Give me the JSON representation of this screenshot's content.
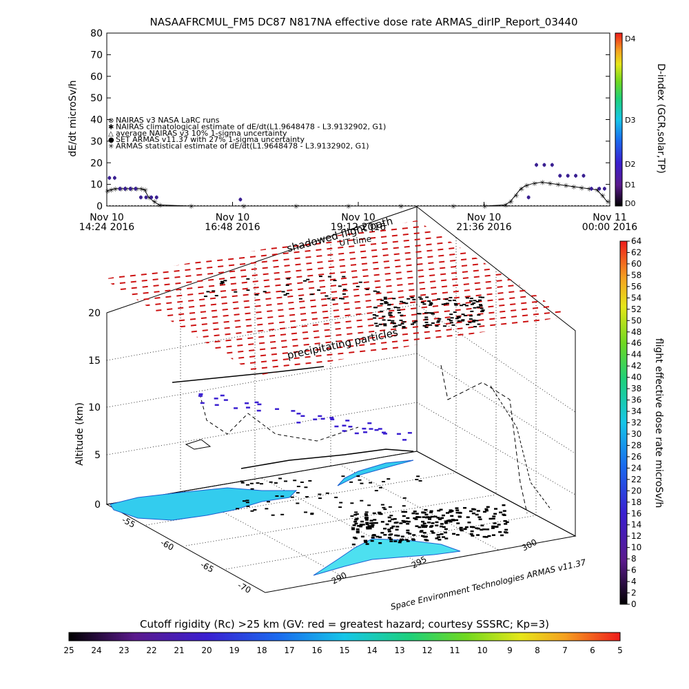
{
  "chart_data": [
    {
      "type": "line",
      "title": "NASAAFRCMUL_FM5 DC87 N817NA effective dose rate ARMAS_dirIP_Report_03440",
      "ylabel": "dE/dt microSv/h",
      "ylim": [
        0,
        80
      ],
      "yticks": [
        "0",
        "10",
        "20",
        "30",
        "40",
        "50",
        "60",
        "70",
        "80"
      ],
      "xticks": [
        {
          "top": "Nov 10",
          "bottom": "14:24 2016"
        },
        {
          "top": "Nov 10",
          "bottom": "16:48 2016"
        },
        {
          "top": "Nov 10",
          "bottom": "19:12 2016"
        },
        {
          "top": "Nov 10",
          "bottom": "21:36 2016"
        },
        {
          "top": "Nov 11",
          "bottom": "00:00 2016"
        }
      ],
      "x_hours_range": [
        14.4,
        24.0
      ],
      "legend": [
        "NAIRAS v3 NASA LaRC runs",
        "NAIRAS climatological estimate of dE/dt(L1.9648478 - L3.9132902, G1)",
        "average NAIRAS v3 10% 1-sigma uncertainty",
        "SET ARMAS v11.37 with 27% 1-sigma uncertainty",
        "ARMAS statistical estimate of dE/dt(L1.9648478 - L3.9132902, G1)"
      ],
      "right_axis": {
        "label": "D-index (GCR,solar,TP)",
        "ticks": [
          "D0",
          "D1",
          "D2",
          "D3",
          "D4"
        ]
      },
      "series": [
        {
          "name": "ARMAS statistical estimate of dE/dt(L1.9648478 - L3.9132902, G1)",
          "x": [
            14.4,
            14.47,
            14.55,
            14.65,
            14.75,
            14.85,
            14.95,
            15.05,
            15.12,
            15.2,
            15.3,
            15.4,
            16.0,
            17.0,
            18.0,
            19.0,
            20.0,
            21.0,
            21.6,
            22.0,
            22.1,
            22.2,
            22.3,
            22.4,
            22.55,
            22.7,
            22.85,
            23.0,
            23.15,
            23.3,
            23.45,
            23.6,
            23.75,
            23.85,
            23.95
          ],
          "y": [
            7,
            7.5,
            8,
            8,
            8,
            8,
            8,
            8,
            7.5,
            4,
            2,
            0.5,
            0,
            0,
            0,
            0,
            0,
            0,
            0,
            0.5,
            2,
            5,
            8,
            9.5,
            10.5,
            11,
            10.5,
            10,
            9.5,
            9,
            8.5,
            8,
            7.5,
            5,
            2
          ]
        },
        {
          "name": "SET ARMAS v11.37 with 27% 1-sigma uncertainty",
          "x": [
            14.45,
            14.55,
            14.65,
            14.75,
            14.85,
            14.95,
            15.05,
            15.15,
            15.25,
            15.35,
            16.95,
            22.45,
            22.6,
            22.75,
            22.9,
            23.05,
            23.2,
            23.35,
            23.5,
            23.65,
            23.8,
            23.9
          ],
          "y": [
            13,
            13,
            8,
            8,
            8,
            8,
            4,
            4,
            4,
            4,
            3,
            4,
            19,
            19,
            19,
            14,
            14,
            14,
            14,
            8,
            8,
            8
          ]
        }
      ]
    },
    {
      "type": "heatmap",
      "title": "",
      "zlabel": "Altitude (km)",
      "zticks": [
        "0",
        "5",
        "10",
        "15",
        "20"
      ],
      "lat_ticks": [
        "-55",
        "-60",
        "-65",
        "-70"
      ],
      "lon_ticks": [
        "290",
        "295",
        "300"
      ],
      "annotations": [
        "shadowed flight path",
        "UT time",
        "precipitating particles"
      ],
      "colorbar_right": {
        "label": "flight effective dose rate microSv/h",
        "range": [
          0,
          64
        ],
        "ticks": [
          "0",
          "2",
          "4",
          "6",
          "8",
          "10",
          "12",
          "14",
          "16",
          "18",
          "20",
          "22",
          "24",
          "26",
          "28",
          "30",
          "32",
          "34",
          "36",
          "38",
          "40",
          "42",
          "44",
          "46",
          "48",
          "50",
          "52",
          "54",
          "56",
          "58",
          "60",
          "62",
          "64"
        ]
      },
      "colorbar_bottom": {
        "label": "Cutoff rigidity (Rc) >25 km (GV: red = greatest hazard; courtesy SSSRC; Kp=3)",
        "ticks": [
          "25",
          "24",
          "23",
          "22",
          "21",
          "20",
          "19",
          "18",
          "17",
          "16",
          "15",
          "14",
          "13",
          "12",
          "11",
          "10",
          "9",
          "8",
          "7",
          "6",
          "5"
        ]
      },
      "credit": "Space Environment Technologies ARMAS v11.37"
    }
  ]
}
